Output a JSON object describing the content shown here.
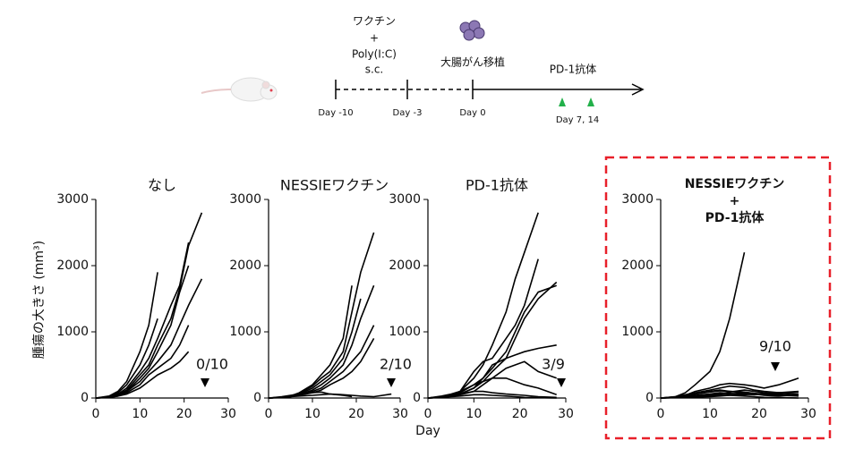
{
  "timeline": {
    "vaccine": "ワクチン",
    "plus": "+",
    "adjuvant": "Poly(I:C)",
    "route": "s.c.",
    "implant": "大腸がん移植",
    "antibody": "PD-1抗体",
    "day_m10": "Day -10",
    "day_m3": "Day -3",
    "day_0": "Day 0",
    "dose_days": "Day 7, 14"
  },
  "chart_data": [
    {
      "type": "line",
      "title": [
        "なし"
      ],
      "ylabel": "腫瘍の大きさ (mm³)",
      "annotation": "0/10",
      "color": "#000000",
      "xlim": [
        0,
        30
      ],
      "xticks": [
        0,
        10,
        20,
        30
      ],
      "ylim": [
        0,
        3000
      ],
      "yticks": [
        0,
        1000,
        2000,
        3000
      ],
      "x": [
        0,
        3,
        5,
        7,
        10,
        12,
        14,
        17,
        19,
        21,
        24
      ],
      "series": [
        {
          "values": [
            0,
            30,
            100,
            250,
            700,
            1100,
            1900,
            null,
            null,
            null,
            null
          ]
        },
        {
          "values": [
            0,
            20,
            80,
            200,
            500,
            800,
            1200,
            null,
            null,
            null,
            null
          ]
        },
        {
          "values": [
            0,
            20,
            60,
            150,
            400,
            600,
            900,
            1400,
            1700,
            2350,
            null
          ]
        },
        {
          "values": [
            0,
            10,
            50,
            120,
            350,
            500,
            800,
            1200,
            1650,
            2300,
            2800
          ]
        },
        {
          "values": [
            0,
            10,
            40,
            100,
            300,
            450,
            700,
            1100,
            1600,
            2000,
            null
          ]
        },
        {
          "values": [
            0,
            10,
            40,
            100,
            250,
            400,
            550,
            800,
            1100,
            1400,
            1800
          ]
        },
        {
          "values": [
            0,
            10,
            30,
            80,
            200,
            350,
            450,
            600,
            800,
            1100,
            null
          ]
        },
        {
          "values": [
            0,
            10,
            30,
            60,
            150,
            250,
            350,
            450,
            550,
            700,
            null
          ]
        }
      ]
    },
    {
      "type": "line",
      "title": [
        "NESSIEワクチン"
      ],
      "annotation": "2/10",
      "color": "#000000",
      "xlim": [
        0,
        30
      ],
      "xticks": [
        0,
        10,
        20,
        30
      ],
      "ylim": [
        0,
        3000
      ],
      "yticks": [
        0,
        1000,
        2000,
        3000
      ],
      "x": [
        0,
        3,
        5,
        7,
        10,
        12,
        14,
        17,
        19,
        21,
        24,
        28
      ],
      "series": [
        {
          "values": [
            0,
            10,
            30,
            80,
            200,
            350,
            500,
            900,
            1700,
            null,
            null,
            null
          ]
        },
        {
          "values": [
            0,
            10,
            30,
            70,
            180,
            300,
            400,
            700,
            1300,
            1900,
            2500,
            null
          ]
        },
        {
          "values": [
            0,
            10,
            30,
            60,
            150,
            250,
            350,
            600,
            1000,
            1500,
            null,
            null
          ]
        },
        {
          "values": [
            0,
            10,
            20,
            50,
            120,
            200,
            300,
            500,
            800,
            1200,
            1700,
            null
          ]
        },
        {
          "values": [
            0,
            10,
            20,
            50,
            100,
            150,
            250,
            400,
            550,
            700,
            1100,
            null
          ]
        },
        {
          "values": [
            0,
            5,
            20,
            40,
            80,
            120,
            200,
            300,
            400,
            550,
            900,
            null
          ]
        },
        {
          "values": [
            0,
            20,
            40,
            60,
            80,
            90,
            60,
            40,
            20,
            null,
            null,
            null
          ]
        },
        {
          "values": [
            0,
            10,
            20,
            30,
            40,
            50,
            60,
            50,
            40,
            30,
            20,
            60
          ]
        }
      ]
    },
    {
      "type": "line",
      "title": [
        "PD-1抗体"
      ],
      "xlabel": "Day",
      "annotation": "3/9",
      "color": "#000000",
      "xlim": [
        0,
        30
      ],
      "xticks": [
        0,
        10,
        20,
        30
      ],
      "ylim": [
        0,
        3000
      ],
      "yticks": [
        0,
        1000,
        2000,
        3000
      ],
      "x": [
        0,
        3,
        5,
        7,
        10,
        12,
        14,
        17,
        19,
        21,
        24,
        28
      ],
      "series": [
        {
          "values": [
            0,
            20,
            50,
            100,
            300,
            500,
            800,
            1300,
            1800,
            2200,
            2800,
            null
          ]
        },
        {
          "values": [
            0,
            20,
            50,
            100,
            400,
            550,
            600,
            900,
            1100,
            1400,
            2100,
            null
          ]
        },
        {
          "values": [
            0,
            10,
            40,
            80,
            200,
            300,
            450,
            700,
            1000,
            1300,
            1600,
            1700
          ]
        },
        {
          "values": [
            0,
            10,
            30,
            60,
            150,
            250,
            400,
            600,
            900,
            1200,
            1500,
            1750
          ]
        },
        {
          "values": [
            0,
            10,
            30,
            60,
            150,
            300,
            500,
            600,
            650,
            700,
            750,
            800
          ]
        },
        {
          "values": [
            0,
            10,
            30,
            50,
            100,
            200,
            300,
            450,
            500,
            550,
            400,
            300
          ]
        },
        {
          "values": [
            0,
            30,
            60,
            100,
            200,
            250,
            300,
            300,
            250,
            200,
            150,
            50
          ]
        },
        {
          "values": [
            0,
            20,
            40,
            60,
            100,
            100,
            80,
            60,
            50,
            40,
            20,
            10
          ]
        },
        {
          "values": [
            0,
            10,
            20,
            30,
            50,
            50,
            40,
            30,
            20,
            10,
            5,
            0
          ]
        }
      ]
    },
    {
      "type": "line",
      "title": [
        "NESSIEワクチン",
        "+",
        "PD-1抗体"
      ],
      "title_color": "#e8202a",
      "annotation": "9/10",
      "annotation_color": "#e8202a",
      "color": "#000000",
      "xlim": [
        0,
        30
      ],
      "xticks": [
        0,
        10,
        20,
        30
      ],
      "ylim": [
        0,
        3000
      ],
      "yticks": [
        0,
        1000,
        2000,
        3000
      ],
      "x": [
        0,
        3,
        5,
        7,
        10,
        12,
        14,
        17,
        19,
        21,
        24,
        28
      ],
      "series": [
        {
          "values": [
            0,
            20,
            80,
            200,
            400,
            700,
            1200,
            2200,
            null,
            null,
            null,
            null
          ]
        },
        {
          "values": [
            0,
            10,
            40,
            100,
            150,
            200,
            220,
            200,
            180,
            150,
            200,
            300
          ]
        },
        {
          "values": [
            0,
            10,
            30,
            60,
            100,
            120,
            100,
            80,
            60,
            40,
            30,
            50
          ]
        },
        {
          "values": [
            0,
            20,
            50,
            80,
            120,
            150,
            180,
            160,
            120,
            100,
            80,
            60
          ]
        },
        {
          "values": [
            0,
            10,
            20,
            40,
            60,
            80,
            70,
            60,
            50,
            60,
            80,
            100
          ]
        },
        {
          "values": [
            0,
            5,
            15,
            30,
            50,
            60,
            90,
            120,
            100,
            80,
            60,
            40
          ]
        },
        {
          "values": [
            0,
            10,
            20,
            30,
            40,
            50,
            40,
            30,
            20,
            10,
            5,
            0
          ]
        },
        {
          "values": [
            0,
            5,
            10,
            20,
            30,
            40,
            60,
            80,
            70,
            50,
            40,
            30
          ]
        },
        {
          "values": [
            0,
            15,
            30,
            60,
            90,
            110,
            100,
            90,
            70,
            60,
            50,
            40
          ]
        },
        {
          "values": [
            0,
            5,
            10,
            15,
            20,
            30,
            40,
            50,
            60,
            70,
            80,
            90
          ]
        }
      ]
    }
  ]
}
